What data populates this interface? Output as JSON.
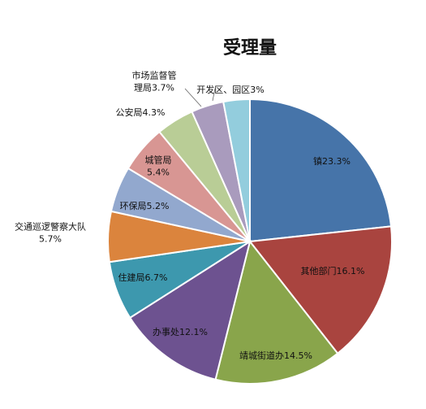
{
  "chart_data": {
    "type": "pie",
    "title": "受理量",
    "slices": [
      {
        "label_lines": [
          "镇23.3%"
        ],
        "value": 23.3,
        "color": "#4674A9"
      },
      {
        "label_lines": [
          "其他部门16.1%"
        ],
        "value": 16.1,
        "color": "#A9443F"
      },
      {
        "label_lines": [
          "靖城街道办14.5%"
        ],
        "value": 14.5,
        "color": "#89A54B"
      },
      {
        "label_lines": [
          "办事处12.1%"
        ],
        "value": 12.1,
        "color": "#6D5290"
      },
      {
        "label_lines": [
          "住建局6.7%"
        ],
        "value": 6.7,
        "color": "#3D98AE"
      },
      {
        "label_lines": [
          "交通巡逻警察大队",
          "5.7%"
        ],
        "value": 5.7,
        "color": "#DB843D"
      },
      {
        "label_lines": [
          "环保局5.2%"
        ],
        "value": 5.2,
        "color": "#92A8CE"
      },
      {
        "label_lines": [
          "城管局",
          "5.4%"
        ],
        "value": 5.4,
        "color": "#D89693"
      },
      {
        "label_lines": [
          "公安局4.3%"
        ],
        "value": 4.3,
        "color": "#B9CD96"
      },
      {
        "label_lines": [
          "市场监督管",
          "理局3.7%"
        ],
        "value": 3.7,
        "color": "#A99BBD"
      },
      {
        "label_lines": [
          "开发区、园区3%"
        ],
        "value": 3.0,
        "color": "#93CDDD"
      }
    ]
  }
}
